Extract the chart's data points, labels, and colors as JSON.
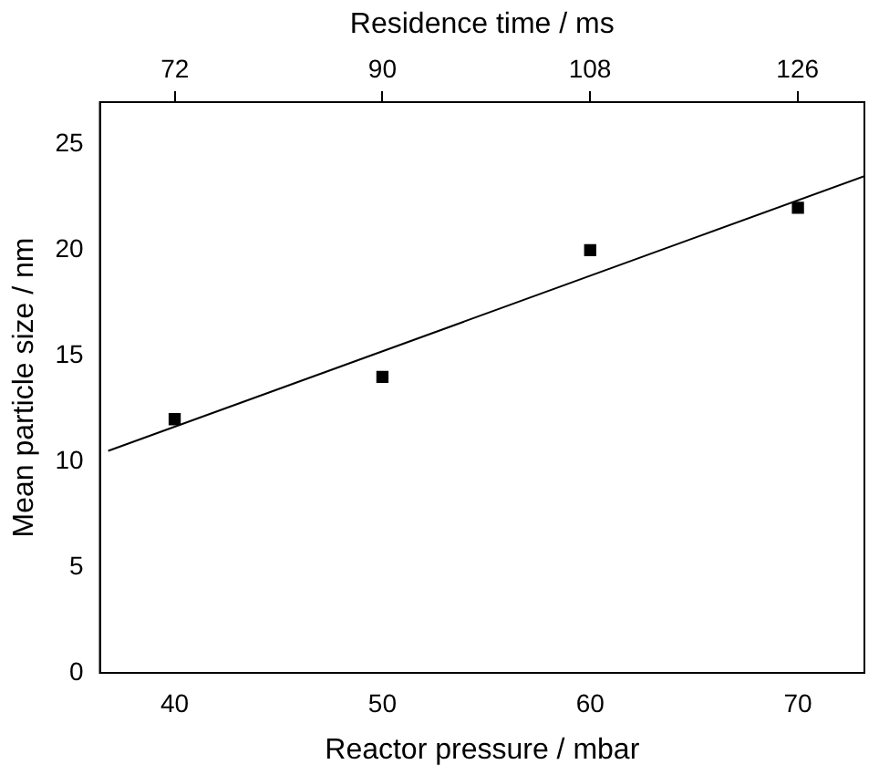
{
  "chart_data": {
    "type": "scatter",
    "xlabel": "Reactor pressure / mbar",
    "ylabel": "Mean particle size / nm",
    "x2label": "Residence time / ms",
    "xlim": [
      36.4,
      73.2
    ],
    "xticks": [
      40,
      50,
      60,
      70
    ],
    "x2lim": [
      65.5,
      131.8
    ],
    "x2ticks": [
      72,
      90,
      108,
      126
    ],
    "ylim": [
      0,
      27
    ],
    "yticks": [
      0,
      5,
      10,
      15,
      20,
      25
    ],
    "grid": false,
    "legend": false,
    "marker": "square",
    "series": [
      {
        "type": "scatter",
        "color": "#000000",
        "x": [
          40,
          50,
          60,
          70
        ],
        "values": [
          12,
          14,
          20,
          22
        ]
      },
      {
        "type": "line",
        "color": "#000000",
        "marker": "none",
        "line_style": "solid",
        "x": [
          36.8,
          73.2
        ],
        "values": [
          10.5,
          23.5
        ]
      }
    ]
  }
}
